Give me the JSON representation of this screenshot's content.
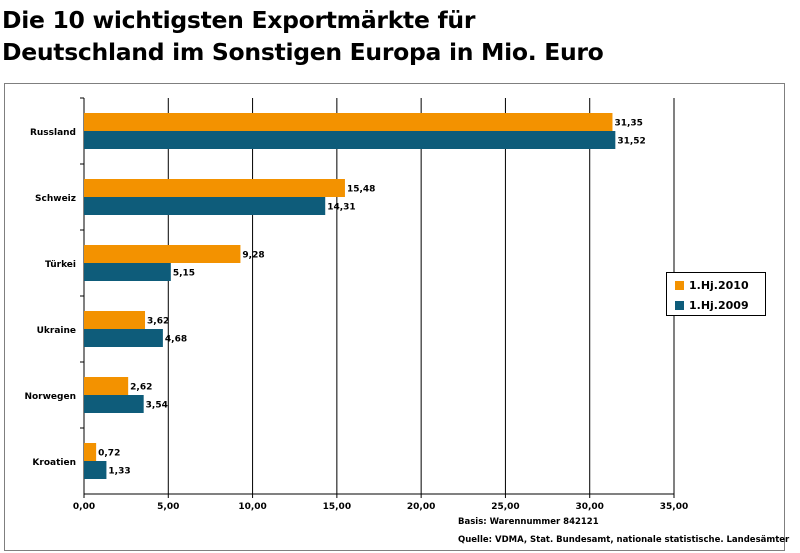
{
  "title_line1": "Die 10 wichtigsten Exportmärkte für",
  "title_line2": "Deutschland im Sonstigen Europa in Mio. Euro",
  "chart_data": {
    "type": "bar",
    "orientation": "horizontal",
    "categories": [
      "Russland",
      "Schweiz",
      "Türkei",
      "Ukraine",
      "Norwegen",
      "Kroatien"
    ],
    "series": [
      {
        "name": "1.Hj.2010",
        "color": "#f39200",
        "values": [
          31.35,
          15.48,
          9.28,
          3.62,
          2.62,
          0.72
        ],
        "labels": [
          "31,35",
          "15,48",
          "9,28",
          "3,62",
          "2,62",
          "0,72"
        ]
      },
      {
        "name": "1.Hj.2009",
        "color": "#0e5c7a",
        "values": [
          31.52,
          14.31,
          5.15,
          4.68,
          3.54,
          1.33
        ],
        "labels": [
          "31,52",
          "14,31",
          "5,15",
          "4,68",
          "3,54",
          "1,33"
        ]
      }
    ],
    "xlim": [
      0,
      35
    ],
    "xticks": [
      0,
      5,
      10,
      15,
      20,
      25,
      30,
      35
    ],
    "xtick_labels": [
      "0,00",
      "5,00",
      "10,00",
      "15,00",
      "20,00",
      "25,00",
      "30,00",
      "35,00"
    ],
    "grid": "vertical",
    "legend": "right"
  },
  "notes": {
    "basis": "Basis: Warennummer 842121",
    "source": "Quelle: VDMA, Stat. Bundesamt, nationale statistische. Landesämter"
  }
}
